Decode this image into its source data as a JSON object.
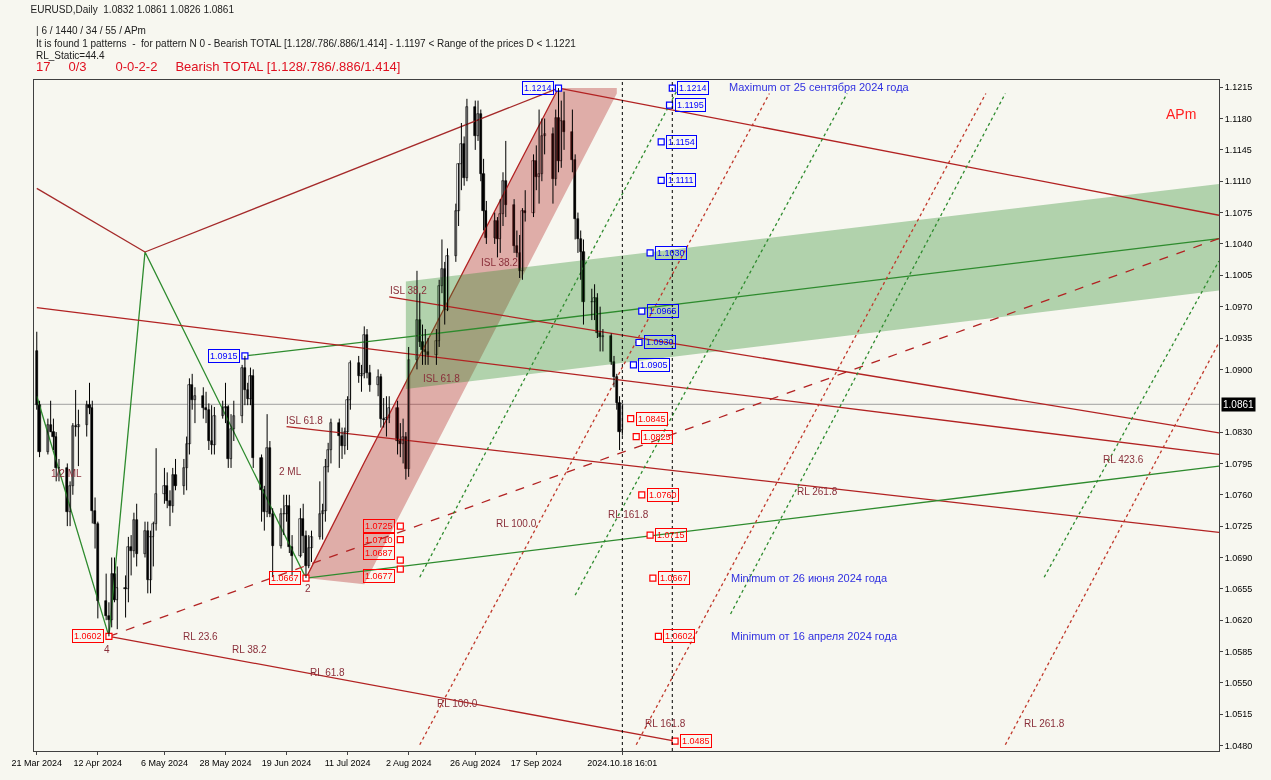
{
  "chart_data": {
    "type": "candlestick",
    "title": "EURUSD,Daily  1.0832 1.0861 1.0826 1.0861",
    "color": "#000000",
    "x": [
      "2024-03-21",
      "2024-03-22",
      "2024-03-25",
      "2024-03-26",
      "2024-03-27",
      "2024-03-28",
      "2024-03-29",
      "2024-04-01",
      "2024-04-02",
      "2024-04-03",
      "2024-04-04",
      "2024-04-05",
      "2024-04-08",
      "2024-04-09",
      "2024-04-10",
      "2024-04-11",
      "2024-04-12",
      "2024-04-15",
      "2024-04-16",
      "2024-04-17",
      "2024-04-18",
      "2024-04-19",
      "2024-04-22",
      "2024-04-23",
      "2024-04-24",
      "2024-04-25",
      "2024-04-26",
      "2024-04-29",
      "2024-04-30",
      "2024-05-01",
      "2024-05-02",
      "2024-05-03",
      "2024-05-06",
      "2024-05-07",
      "2024-05-08",
      "2024-05-09",
      "2024-05-10",
      "2024-05-13",
      "2024-05-14",
      "2024-05-15",
      "2024-05-16",
      "2024-05-17",
      "2024-05-20",
      "2024-05-21",
      "2024-05-22",
      "2024-05-23",
      "2024-05-24",
      "2024-05-27",
      "2024-05-28",
      "2024-05-29",
      "2024-05-30",
      "2024-05-31",
      "2024-06-03",
      "2024-06-04",
      "2024-06-05",
      "2024-06-06",
      "2024-06-07",
      "2024-06-10",
      "2024-06-11",
      "2024-06-12",
      "2024-06-13",
      "2024-06-14",
      "2024-06-17",
      "2024-06-18",
      "2024-06-19",
      "2024-06-20",
      "2024-06-21",
      "2024-06-24",
      "2024-06-25",
      "2024-06-26",
      "2024-06-27",
      "2024-06-28",
      "2024-07-01",
      "2024-07-02",
      "2024-07-03",
      "2024-07-04",
      "2024-07-05",
      "2024-07-08",
      "2024-07-09",
      "2024-07-10",
      "2024-07-11",
      "2024-07-12",
      "2024-07-15",
      "2024-07-16",
      "2024-07-17",
      "2024-07-18",
      "2024-07-19",
      "2024-07-22",
      "2024-07-23",
      "2024-07-24",
      "2024-07-25",
      "2024-07-26",
      "2024-07-29",
      "2024-07-30",
      "2024-07-31",
      "2024-08-01",
      "2024-08-02",
      "2024-08-05",
      "2024-08-06",
      "2024-08-07",
      "2024-08-08",
      "2024-08-09",
      "2024-08-12",
      "2024-08-13",
      "2024-08-14",
      "2024-08-15",
      "2024-08-16",
      "2024-08-19",
      "2024-08-20",
      "2024-08-21",
      "2024-08-22",
      "2024-08-23",
      "2024-08-26",
      "2024-08-27",
      "2024-08-28",
      "2024-08-29",
      "2024-08-30",
      "2024-09-02",
      "2024-09-03",
      "2024-09-04",
      "2024-09-05",
      "2024-09-06",
      "2024-09-09",
      "2024-09-10",
      "2024-09-11",
      "2024-09-12",
      "2024-09-13",
      "2024-09-16",
      "2024-09-17",
      "2024-09-18",
      "2024-09-19",
      "2024-09-20",
      "2024-09-23",
      "2024-09-24",
      "2024-09-25",
      "2024-09-26",
      "2024-09-27",
      "2024-09-30",
      "2024-10-01",
      "2024-10-02",
      "2024-10-03",
      "2024-10-04",
      "2024-10-07",
      "2024-10-08",
      "2024-10-09",
      "2024-10-10",
      "2024-10-11",
      "2024-10-14",
      "2024-10-15",
      "2024-10-16",
      "2024-10-17",
      "2024-10-18"
    ],
    "ohlc": [
      [
        1.092,
        1.0942,
        1.0855,
        1.086
      ],
      [
        1.086,
        1.0865,
        1.0802,
        1.0808
      ],
      [
        1.0808,
        1.0845,
        1.0805,
        1.0838
      ],
      [
        1.0838,
        1.0865,
        1.083,
        1.083
      ],
      [
        1.083,
        1.0845,
        1.081,
        1.0825
      ],
      [
        1.0825,
        1.083,
        1.0775,
        1.079
      ],
      [
        1.079,
        1.08,
        1.0775,
        1.079
      ],
      [
        1.079,
        1.0795,
        1.0725,
        1.0741
      ],
      [
        1.0741,
        1.0775,
        1.0725,
        1.077
      ],
      [
        1.077,
        1.084,
        1.076,
        1.0837
      ],
      [
        1.0837,
        1.0877,
        1.0825,
        1.0836
      ],
      [
        1.0836,
        1.0855,
        1.0792,
        1.0838
      ],
      [
        1.0838,
        1.0865,
        1.0825,
        1.086
      ],
      [
        1.086,
        1.0885,
        1.085,
        1.0857
      ],
      [
        1.0857,
        1.0865,
        1.0728,
        1.0742
      ],
      [
        1.0742,
        1.0757,
        1.07,
        1.0727
      ],
      [
        1.0727,
        1.073,
        1.0622,
        1.0642
      ],
      [
        1.0642,
        1.0672,
        1.062,
        1.0625
      ],
      [
        1.0625,
        1.064,
        1.0602,
        1.062
      ],
      [
        1.062,
        1.069,
        1.0612,
        1.0672
      ],
      [
        1.0672,
        1.069,
        1.064,
        1.0643
      ],
      [
        1.0643,
        1.068,
        1.061,
        1.0656
      ],
      [
        1.0656,
        1.067,
        1.0623,
        1.0655
      ],
      [
        1.0655,
        1.0713,
        1.064,
        1.0702
      ],
      [
        1.0702,
        1.0715,
        1.067,
        1.0697
      ],
      [
        1.0697,
        1.074,
        1.069,
        1.0732
      ],
      [
        1.0732,
        1.075,
        1.068,
        1.0694
      ],
      [
        1.0694,
        1.073,
        1.069,
        1.072
      ],
      [
        1.072,
        1.073,
        1.065,
        1.0665
      ],
      [
        1.0665,
        1.072,
        1.065,
        1.0713
      ],
      [
        1.0713,
        1.073,
        1.068,
        1.0727
      ],
      [
        1.0727,
        1.0812,
        1.072,
        1.0761
      ],
      [
        1.0761,
        1.079,
        1.075,
        1.077
      ],
      [
        1.077,
        1.0785,
        1.0745,
        1.0753
      ],
      [
        1.0753,
        1.0765,
        1.0725,
        1.0748
      ],
      [
        1.0748,
        1.079,
        1.074,
        1.0782
      ],
      [
        1.0782,
        1.08,
        1.0765,
        1.077
      ],
      [
        1.077,
        1.08,
        1.076,
        1.079
      ],
      [
        1.079,
        1.0825,
        1.0765,
        1.0817
      ],
      [
        1.0817,
        1.089,
        1.0805,
        1.0883
      ],
      [
        1.0883,
        1.0895,
        1.0855,
        1.0866
      ],
      [
        1.0866,
        1.088,
        1.084,
        1.087
      ],
      [
        1.087,
        1.088,
        1.0845,
        1.0857
      ],
      [
        1.0857,
        1.0875,
        1.084,
        1.0855
      ],
      [
        1.0855,
        1.0862,
        1.081,
        1.082
      ],
      [
        1.082,
        1.086,
        1.0805,
        1.0816
      ],
      [
        1.0816,
        1.0858,
        1.0805,
        1.0848
      ],
      [
        1.0848,
        1.0865,
        1.0845,
        1.0857
      ],
      [
        1.0857,
        1.0885,
        1.084,
        1.0858
      ],
      [
        1.0858,
        1.086,
        1.079,
        1.08
      ],
      [
        1.08,
        1.085,
        1.079,
        1.0833
      ],
      [
        1.0833,
        1.0865,
        1.082,
        1.0848
      ],
      [
        1.0848,
        1.0905,
        1.084,
        1.0902
      ],
      [
        1.0902,
        1.0915,
        1.086,
        1.0877
      ],
      [
        1.0877,
        1.0885,
        1.086,
        1.0867
      ],
      [
        1.0867,
        1.0902,
        1.086,
        1.0893
      ],
      [
        1.0893,
        1.09,
        1.079,
        1.0801
      ],
      [
        1.0801,
        1.0805,
        1.073,
        1.0765
      ],
      [
        1.0765,
        1.077,
        1.072,
        1.0741
      ],
      [
        1.0741,
        1.085,
        1.0735,
        1.0812
      ],
      [
        1.0812,
        1.082,
        1.0735,
        1.0739
      ],
      [
        1.0739,
        1.0745,
        1.0668,
        1.0703
      ],
      [
        1.0703,
        1.0745,
        1.07,
        1.0738
      ],
      [
        1.0738,
        1.076,
        1.0715,
        1.0738
      ],
      [
        1.0738,
        1.076,
        1.073,
        1.0747
      ],
      [
        1.0747,
        1.076,
        1.0695,
        1.0702
      ],
      [
        1.0702,
        1.0715,
        1.067,
        1.0692
      ],
      [
        1.0692,
        1.0745,
        1.069,
        1.0733
      ],
      [
        1.0733,
        1.075,
        1.0695,
        1.0714
      ],
      [
        1.0714,
        1.072,
        1.0667,
        1.0681
      ],
      [
        1.0681,
        1.0715,
        1.0678,
        1.0701
      ],
      [
        1.0701,
        1.072,
        1.0685,
        1.0713
      ],
      [
        1.0713,
        1.0775,
        1.071,
        1.0739
      ],
      [
        1.0739,
        1.075,
        1.071,
        1.0742
      ],
      [
        1.0742,
        1.08,
        1.073,
        1.0791
      ],
      [
        1.0791,
        1.0818,
        1.0785,
        1.081
      ],
      [
        1.081,
        1.0845,
        1.0795,
        1.084
      ],
      [
        1.084,
        1.0845,
        1.079,
        1.0826
      ],
      [
        1.0826,
        1.0835,
        1.08,
        1.0814
      ],
      [
        1.0814,
        1.0835,
        1.0805,
        1.083
      ],
      [
        1.083,
        1.087,
        1.081,
        1.0866
      ],
      [
        1.0866,
        1.091,
        1.0855,
        1.0907
      ],
      [
        1.0907,
        1.0915,
        1.0885,
        1.0893
      ],
      [
        1.0893,
        1.0905,
        1.0875,
        1.0895
      ],
      [
        1.0895,
        1.0948,
        1.089,
        1.0938
      ],
      [
        1.0938,
        1.0945,
        1.089,
        1.0896
      ],
      [
        1.0896,
        1.0905,
        1.0875,
        1.0882
      ],
      [
        1.0882,
        1.09,
        1.087,
        1.0891
      ],
      [
        1.0891,
        1.0895,
        1.0835,
        1.0845
      ],
      [
        1.0845,
        1.0868,
        1.0835,
        1.0843
      ],
      [
        1.0843,
        1.087,
        1.0825,
        1.0846
      ],
      [
        1.0846,
        1.087,
        1.084,
        1.0857
      ],
      [
        1.0857,
        1.0865,
        1.0805,
        1.082
      ],
      [
        1.082,
        1.084,
        1.0802,
        1.0817
      ],
      [
        1.0817,
        1.0845,
        1.0795,
        1.0825
      ],
      [
        1.0825,
        1.083,
        1.0777,
        1.0789
      ],
      [
        1.0789,
        1.0925,
        1.078,
        1.0911
      ],
      [
        1.0911,
        1.101,
        1.09,
        1.0955
      ],
      [
        1.0955,
        1.0985,
        1.0925,
        1.0931
      ],
      [
        1.0931,
        1.095,
        1.0905,
        1.0922
      ],
      [
        1.0922,
        1.0945,
        1.0905,
        1.0919
      ],
      [
        1.0919,
        1.0935,
        1.0905,
        1.0916
      ],
      [
        1.0916,
        1.0945,
        1.0905,
        1.0932
      ],
      [
        1.0932,
        1.1,
        1.0925,
        1.0993
      ],
      [
        1.0993,
        1.1045,
        1.0985,
        1.1012
      ],
      [
        1.1012,
        1.102,
        1.095,
        1.0966
      ],
      [
        1.0966,
        1.1035,
        1.0965,
        1.1027
      ],
      [
        1.1027,
        1.1085,
        1.102,
        1.1077
      ],
      [
        1.1077,
        1.113,
        1.106,
        1.1129
      ],
      [
        1.1129,
        1.1175,
        1.11,
        1.1152
      ],
      [
        1.1152,
        1.116,
        1.1105,
        1.1114
      ],
      [
        1.1114,
        1.1202,
        1.111,
        1.1193
      ],
      [
        1.1193,
        1.12,
        1.1145,
        1.116
      ],
      [
        1.116,
        1.12,
        1.1155,
        1.1185
      ],
      [
        1.1185,
        1.119,
        1.111,
        1.1118
      ],
      [
        1.1118,
        1.1135,
        1.1055,
        1.1077
      ],
      [
        1.1077,
        1.1088,
        1.104,
        1.1047
      ],
      [
        1.1047,
        1.1075,
        1.104,
        1.1066
      ],
      [
        1.1066,
        1.107,
        1.1025,
        1.1045
      ],
      [
        1.1045,
        1.109,
        1.103,
        1.1073
      ],
      [
        1.1073,
        1.112,
        1.106,
        1.111
      ],
      [
        1.111,
        1.1155,
        1.107,
        1.1083
      ],
      [
        1.1083,
        1.109,
        1.103,
        1.1038
      ],
      [
        1.1038,
        1.1055,
        1.1025,
        1.103
      ],
      [
        1.103,
        1.105,
        1.1002,
        1.101
      ],
      [
        1.101,
        1.108,
        1.1,
        1.1077
      ],
      [
        1.1077,
        1.11,
        1.1065,
        1.1075
      ],
      [
        1.1075,
        1.114,
        1.107,
        1.1133
      ],
      [
        1.1133,
        1.115,
        1.11,
        1.1115
      ],
      [
        1.1115,
        1.119,
        1.1085,
        1.1118
      ],
      [
        1.1118,
        1.118,
        1.111,
        1.116
      ],
      [
        1.116,
        1.118,
        1.114,
        1.1163
      ],
      [
        1.1163,
        1.117,
        1.1085,
        1.1112
      ],
      [
        1.1112,
        1.119,
        1.1105,
        1.1181
      ],
      [
        1.1181,
        1.1214,
        1.112,
        1.1133
      ],
      [
        1.1133,
        1.12,
        1.1125,
        1.1177
      ],
      [
        1.1177,
        1.121,
        1.1145,
        1.1165
      ],
      [
        1.1165,
        1.119,
        1.112,
        1.1134
      ],
      [
        1.1134,
        1.114,
        1.1045,
        1.1068
      ],
      [
        1.1068,
        1.1075,
        1.103,
        1.1045
      ],
      [
        1.1045,
        1.1055,
        1.1,
        1.1031
      ],
      [
        1.1031,
        1.1045,
        1.095,
        1.0975
      ],
      [
        1.0975,
        1.099,
        1.0955,
        1.0975
      ],
      [
        1.0975,
        1.0995,
        1.0955,
        1.098
      ],
      [
        1.098,
        1.0985,
        1.0935,
        1.0941
      ],
      [
        1.0941,
        1.097,
        1.092,
        1.0936
      ],
      [
        1.0936,
        1.0945,
        1.092,
        1.0937
      ],
      [
        1.0937,
        1.094,
        1.0905,
        1.0908
      ],
      [
        1.0908,
        1.0915,
        1.088,
        1.0892
      ],
      [
        1.0892,
        1.0895,
        1.0855,
        1.0862
      ],
      [
        1.0862,
        1.087,
        1.081,
        1.083
      ],
      [
        1.0832,
        1.0861,
        1.0826,
        1.0861
      ]
    ],
    "xlim": [
      "2024-03-20",
      "2025-05-21"
    ],
    "xticks": [
      {
        "value": "2024-03-21",
        "label": "21 Mar 2024"
      },
      {
        "value": "2024-04-12",
        "label": "12 Apr 2024"
      },
      {
        "value": "2024-05-06",
        "label": "6 May 2024"
      },
      {
        "value": "2024-05-28",
        "label": "28 May 2024"
      },
      {
        "value": "2024-06-19",
        "label": "19 Jun 2024"
      },
      {
        "value": "2024-07-11",
        "label": "11 Jul 2024"
      },
      {
        "value": "2024-08-02",
        "label": "2 Aug 2024"
      },
      {
        "value": "2024-08-26",
        "label": "26 Aug 2024"
      },
      {
        "value": "2024-09-17",
        "label": "17 Sep 2024"
      },
      {
        "value": "2024-10-18",
        "label": "2024.10.18 16:01"
      }
    ],
    "ylim": [
      1.0474,
      1.1223
    ],
    "yticks": [
      {
        "value": 1.048,
        "label": "1.0480"
      },
      {
        "value": 1.0515,
        "label": "1.0515"
      },
      {
        "value": 1.055,
        "label": "1.0550"
      },
      {
        "value": 1.0585,
        "label": "1.0585"
      },
      {
        "value": 1.062,
        "label": "1.0620"
      },
      {
        "value": 1.0655,
        "label": "1.0655"
      },
      {
        "value": 1.069,
        "label": "1.0690"
      },
      {
        "value": 1.0725,
        "label": "1.0725"
      },
      {
        "value": 1.076,
        "label": "1.0760"
      },
      {
        "value": 1.0795,
        "label": "1.0795"
      },
      {
        "value": 1.083,
        "label": "1.0830"
      },
      {
        "value": 1.09,
        "label": "1.0900"
      },
      {
        "value": 1.0935,
        "label": "1.0935"
      },
      {
        "value": 1.097,
        "label": "1.0970"
      },
      {
        "value": 1.1005,
        "label": "1.1005"
      },
      {
        "value": 1.104,
        "label": "1.1040"
      },
      {
        "value": 1.1075,
        "label": "1.1075"
      },
      {
        "value": 1.111,
        "label": "1.1110"
      },
      {
        "value": 1.1145,
        "label": "1.1145"
      },
      {
        "value": 1.118,
        "label": "1.1180"
      },
      {
        "value": 1.1215,
        "label": "1.1215"
      }
    ],
    "series": [
      {
        "type": "line",
        "color": "#2e8b2e",
        "x": [
          "2024-03-21",
          "2024-04-16",
          "2024-04-29",
          "2024-06-26"
        ],
        "values": [
          1.087,
          1.0602,
          1.1031,
          1.0667
        ]
      },
      {
        "type": "line",
        "color": "#a52a2a",
        "x": [
          "2024-04-29",
          "2024-09-25"
        ],
        "values": [
          1.1031,
          1.1214
        ]
      },
      {
        "type": "line",
        "color": "#a52a2a",
        "x": [
          "2024-03-21",
          "2024-04-29"
        ],
        "values": [
          1.1102,
          1.1031
        ]
      },
      {
        "type": "line",
        "color": "#b22222",
        "x": [
          "2024-06-26",
          "2024-07-17",
          "2024-09-25",
          "2024-10-16"
        ],
        "values": [
          1.0667,
          1.0796,
          1.1214,
          null
        ],
        "lower": [
          1.0667,
          1.066,
          1.1082,
          1.1208
        ],
        "upper": [
          1.0667,
          1.0796,
          1.1214,
          1.1214
        ]
      },
      {
        "type": "line",
        "color": "#2e8b2e",
        "x": [
          "2024-06-04",
          "2024-08-01",
          "2025-05-21"
        ],
        "values": [
          1.0915,
          1.0936,
          1.1046
        ],
        "lower": [
          null,
          1.0878,
          1.0988
        ],
        "upper": [
          null,
          1.0998,
          1.1107
        ]
      },
      {
        "type": "line",
        "color": "#b22222",
        "x": [
          "2024-09-25",
          "2025-05-21"
        ],
        "values": [
          1.1214,
          1.1072
        ]
      },
      {
        "type": "line",
        "color": "#b22222",
        "x": [
          "2024-03-21",
          "2025-05-21"
        ],
        "values": [
          1.0969,
          1.0805
        ]
      },
      {
        "type": "line",
        "color": "#b22222",
        "x": [
          "2024-06-19",
          "2025-05-21"
        ],
        "values": [
          1.0836,
          1.0718
        ]
      },
      {
        "type": "line",
        "color": "#b22222",
        "x": [
          "2024-07-26",
          "2025-05-21"
        ],
        "values": [
          1.0981,
          1.0829
        ]
      },
      {
        "type": "line",
        "color": "#b22222",
        "x": [
          "2024-04-16",
          "2024-11-06"
        ],
        "values": [
          1.0602,
          1.0485
        ]
      },
      {
        "type": "line",
        "color": "#2e8b2e",
        "x": [
          "2024-06-26",
          "2025-05-21"
        ],
        "values": [
          1.0667,
          1.0792
        ]
      },
      {
        "type": "line",
        "color": "#b22222",
        "line_style": "dashed",
        "x": [
          "2024-04-16",
          "2025-05-21"
        ],
        "values": [
          1.0602,
          1.1046
        ]
      },
      {
        "type": "line",
        "color": "#c0392b",
        "line_style": "dotted",
        "x": [
          "2024-08-06",
          "2024-12-10"
        ],
        "values": [
          1.0481,
          1.1208
        ]
      },
      {
        "type": "line",
        "color": "#c0392b",
        "line_style": "dotted",
        "x": [
          "2024-10-23",
          "2025-02-26"
        ],
        "values": [
          1.0481,
          1.1208
        ]
      },
      {
        "type": "line",
        "color": "#c0392b",
        "line_style": "dotted",
        "x": [
          "2025-03-05",
          "2025-05-21"
        ],
        "values": [
          1.0481,
          1.093
        ]
      },
      {
        "type": "line",
        "color": "#2e8b2e",
        "line_style": "dotted",
        "x": [
          "2024-08-06",
          "2024-11-07"
        ],
        "values": [
          1.0668,
          1.1213
        ]
      },
      {
        "type": "line",
        "color": "#2e8b2e",
        "line_style": "dotted",
        "x": [
          "2024-10-01",
          "2025-01-07"
        ],
        "values": [
          1.0648,
          1.1208
        ]
      },
      {
        "type": "line",
        "color": "#2e8b2e",
        "line_style": "dotted",
        "x": [
          "2024-11-26",
          "2025-03-05"
        ],
        "values": [
          1.0627,
          1.1208
        ]
      },
      {
        "type": "line",
        "color": "#2e8b2e",
        "line_style": "dotted",
        "x": [
          "2025-03-19",
          "2025-05-21"
        ],
        "values": [
          1.0668,
          1.1021
        ]
      },
      {
        "type": "scatter",
        "marker": "square",
        "color": "#0000ff",
        "x": [
          "2024-11-05",
          "2024-11-04",
          "2024-11-01",
          "2024-11-01",
          "2024-10-28",
          "2024-10-25",
          "2024-10-24",
          "2024-10-22"
        ],
        "values": [
          1.1214,
          1.1195,
          1.1154,
          1.1111,
          1.103,
          1.0965,
          1.093,
          1.0905
        ],
        "value_labels": [
          "1.1214",
          "1.1195",
          "1.1154",
          "1.1111",
          "1.1030",
          "1.0965",
          "1.0930",
          "1.0905"
        ]
      },
      {
        "type": "scatter",
        "marker": "square",
        "color": "#0000ff",
        "x": [
          "2024-09-25",
          "2024-06-04"
        ],
        "values": [
          1.1214,
          1.0915
        ],
        "value_labels": [
          "1.1214",
          "1.0915"
        ]
      },
      {
        "type": "scatter",
        "marker": "square",
        "color": "#ff0000",
        "x": [
          "2024-10-21",
          "2024-10-23",
          "2024-10-25",
          "2024-10-28",
          "2024-10-29",
          "2024-10-31",
          "2024-11-06"
        ],
        "values": [
          1.0845,
          1.0825,
          1.076,
          1.0715,
          1.0667,
          1.0602,
          1.0485
        ],
        "value_labels": [
          "1.0845",
          "1.0825",
          "1.0760",
          "1.0715",
          "1.0667",
          "1.0602",
          "1.0485"
        ]
      },
      {
        "type": "scatter",
        "marker": "square",
        "color": "#ff0000",
        "x": [
          "2024-07-30",
          "2024-07-30",
          "2024-07-30",
          "2024-07-30",
          "2024-06-26",
          "2024-04-16"
        ],
        "values": [
          1.0725,
          1.071,
          1.0687,
          1.0677,
          1.0667,
          1.0602
        ],
        "value_labels": [
          "1.0725",
          "1.0710",
          "1.0687",
          "1.0677",
          "1.0667",
          "1.0602"
        ]
      }
    ],
    "ref_lines": [
      {
        "axis": "y",
        "value": 1.0861,
        "label": "1.0861",
        "color": "#a0a0a0",
        "line_style": "solid"
      },
      {
        "axis": "x",
        "value": "2024-10-18",
        "label": null,
        "color": "#000000",
        "line_style": "dotted"
      },
      {
        "axis": "x",
        "value": "2024-11-05",
        "label": null,
        "color": "#000000",
        "line_style": "dotted"
      }
    ],
    "annotations": [
      "| 6 / 1440 / 34 / 55 / APm",
      "It is found 1 patterns  -  for pattern N 0 - Bearish TOTAL [1.128/.786/.886/1.414] - 1.1197 < Range of the prices D < 1.1221",
      "RL_Static=44.4",
      "17     0/3        0-0-2-2     Bearish TOTAL [1.128/.786/.886/1.414]",
      "APm",
      "4",
      "2",
      "1/2 ML",
      "2 ML",
      "ISL 61.8",
      "ISL 38.2",
      "ISL 38.2",
      "ISL 61.8",
      "RL 23.6",
      "RL 38.2",
      "RL 61.8",
      "RL 100.0",
      "RL 161.8",
      "RL 261.8",
      "RL 100.0",
      "RL 161.8",
      "RL 261.8",
      "RL 423.6",
      "Maximum от 25 сентября 2024 года",
      "Minimum от 26 июня 2024 года",
      "Minimum от 16 апреля 2024 года"
    ]
  }
}
